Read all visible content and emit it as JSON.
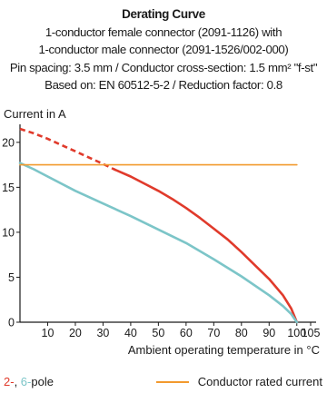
{
  "header": {
    "title": "Derating Curve",
    "line1": "1-conductor female connector (2091-1126) with",
    "line2": "1-conductor male connector (2091-1526/002-000)",
    "line3": "Pin spacing: 3.5 mm / Conductor cross-section: 1.5 mm² \"f-st\"",
    "line4": "Based on: EN 60512-5-2 / Reduction factor: 0.8"
  },
  "legend": {
    "pole_a": "2-",
    "pole_sep": ", ",
    "pole_b": "6-",
    "pole_word": "pole",
    "rated": "Conductor rated current"
  },
  "colors": {
    "two_pole": "#e03a2b",
    "six_pole": "#7cc5c8",
    "rated": "#f29a2e",
    "axis": "#1a1a1a"
  },
  "chart_data": {
    "type": "line",
    "ylabel": "Current in A",
    "xlabel": "Ambient operating temperature in °C",
    "xlim": [
      0,
      105
    ],
    "ylim": [
      0,
      22
    ],
    "xticks": [
      10,
      20,
      30,
      40,
      50,
      60,
      70,
      80,
      90,
      100,
      105
    ],
    "yticks": [
      0,
      5,
      10,
      15,
      20
    ],
    "series": [
      {
        "key": "two_pole",
        "dashed_segment": [
          [
            0,
            21.5
          ],
          [
            5,
            21.0
          ],
          [
            10,
            20.4
          ],
          [
            15,
            19.7
          ],
          [
            20,
            19.0
          ],
          [
            25,
            18.3
          ],
          [
            30,
            17.6
          ],
          [
            34,
            17.0
          ]
        ],
        "solid_segment": [
          [
            34,
            17.0
          ],
          [
            40,
            16.2
          ],
          [
            45,
            15.4
          ],
          [
            50,
            14.6
          ],
          [
            55,
            13.7
          ],
          [
            60,
            12.7
          ],
          [
            65,
            11.6
          ],
          [
            70,
            10.4
          ],
          [
            75,
            9.2
          ],
          [
            80,
            7.8
          ],
          [
            85,
            6.3
          ],
          [
            90,
            4.8
          ],
          [
            95,
            3.0
          ],
          [
            98,
            1.5
          ],
          [
            100,
            0
          ]
        ]
      },
      {
        "key": "six_pole",
        "solid_segment": [
          [
            0,
            17.7
          ],
          [
            5,
            17.0
          ],
          [
            10,
            16.2
          ],
          [
            20,
            14.6
          ],
          [
            30,
            13.2
          ],
          [
            40,
            11.8
          ],
          [
            50,
            10.3
          ],
          [
            60,
            8.8
          ],
          [
            70,
            7.0
          ],
          [
            80,
            5.1
          ],
          [
            90,
            3.0
          ],
          [
            95,
            1.8
          ],
          [
            98,
            0.9
          ],
          [
            100,
            0
          ]
        ]
      },
      {
        "key": "rated",
        "solid_segment": [
          [
            0,
            17.5
          ],
          [
            100,
            17.5
          ]
        ]
      }
    ]
  }
}
